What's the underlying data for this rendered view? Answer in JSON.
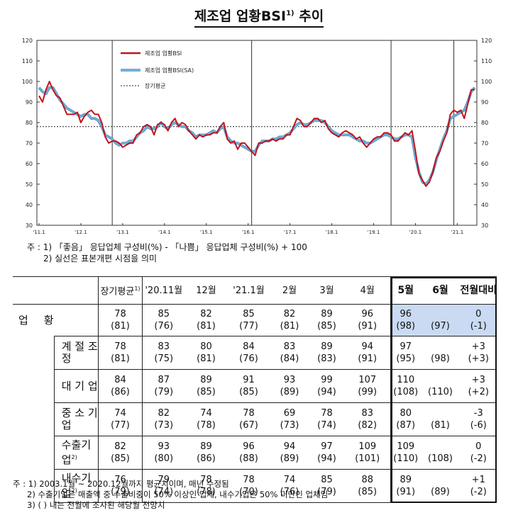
{
  "title": "제조업 업황BSI",
  "title_sup": "1)",
  "chart_data": {
    "type": "line",
    "x_tick_labels": [
      "'11.1",
      "'12.1",
      "'13.1",
      "'14.1",
      "'15.1",
      "'16.1",
      "'17.1",
      "'18.1",
      "'19.1",
      "'20.1",
      "'21.1"
    ],
    "ylim": [
      30,
      120
    ],
    "yticks": [
      30,
      40,
      50,
      60,
      70,
      80,
      90,
      100,
      110,
      120
    ],
    "long_term_average": 78,
    "recession_markers": [
      "2012.10",
      "2016.02",
      "2019.06",
      "2020.12"
    ],
    "legend": [
      "제조업 업황BSI",
      "제조업 업황BSI(SA)",
      "장기평균"
    ],
    "legend_position": "top-left",
    "series": [
      {
        "name": "제조업 업황BSI",
        "color": "#c0141c",
        "values": [
          93,
          90,
          96,
          100,
          96,
          93,
          92,
          88,
          84,
          84,
          84,
          85,
          80,
          83,
          85,
          86,
          84,
          84,
          80,
          73,
          70,
          71,
          71,
          70,
          68,
          69,
          70,
          70,
          74,
          75,
          78,
          79,
          78,
          74,
          79,
          80,
          79,
          76,
          80,
          82,
          78,
          80,
          79,
          76,
          74,
          72,
          74,
          73,
          74,
          74,
          75,
          75,
          78,
          80,
          72,
          70,
          71,
          67,
          70,
          70,
          68,
          66,
          64,
          70,
          70,
          71,
          71,
          72,
          71,
          72,
          72,
          74,
          74,
          78,
          82,
          81,
          78,
          78,
          80,
          82,
          82,
          80,
          81,
          77,
          75,
          74,
          73,
          75,
          76,
          75,
          74,
          72,
          73,
          70,
          68,
          70,
          72,
          73,
          73,
          75,
          75,
          74,
          71,
          71,
          73,
          75,
          74,
          76,
          66,
          55,
          52,
          49,
          51,
          56,
          63,
          66,
          71,
          75,
          84,
          86,
          85,
          86,
          82,
          89,
          96,
          96
        ]
      },
      {
        "name": "제조업 업황BSI(SA)",
        "color": "#6fb3e0",
        "values": [
          97,
          95,
          94,
          97,
          97,
          94,
          91,
          89,
          87,
          86,
          85,
          84,
          83,
          84,
          84,
          82,
          82,
          81,
          78,
          74,
          73,
          72,
          70,
          69,
          70,
          70,
          71,
          71,
          73,
          75,
          76,
          78,
          77,
          77,
          78,
          80,
          78,
          77,
          79,
          80,
          79,
          78,
          78,
          76,
          75,
          73,
          74,
          74,
          74,
          75,
          76,
          75,
          77,
          78,
          73,
          71,
          70,
          70,
          69,
          68,
          67,
          66,
          66,
          69,
          71,
          71,
          71,
          72,
          72,
          73,
          73,
          74,
          75,
          77,
          79,
          80,
          79,
          79,
          80,
          81,
          81,
          81,
          80,
          78,
          76,
          75,
          74,
          74,
          74,
          74,
          73,
          72,
          71,
          71,
          70,
          70,
          71,
          72,
          73,
          74,
          74,
          73,
          72,
          72,
          73,
          74,
          74,
          73,
          63,
          56,
          51,
          50,
          52,
          56,
          62,
          67,
          72,
          76,
          82,
          83,
          84,
          85,
          86,
          90,
          95,
          97
        ]
      },
      {
        "name": "장기평균",
        "color": "#222222",
        "style": "dotted",
        "value": 78
      }
    ]
  },
  "chart_notes": [
    "주 : 1) 「좋음」 응답업체 구성비(%) - 「나쁨」 응답업체 구성비(%) + 100",
    "2) 실선은 표본개편 시점을 의미"
  ],
  "table": {
    "headers": [
      "장기평균",
      "'20.11월",
      "12월",
      "'21.1월",
      "2월",
      "3월",
      "4월",
      "5월",
      "6월",
      "전월대비"
    ],
    "header_sup": "1)",
    "rows": [
      {
        "label": "업    황",
        "sup": "",
        "sub": false,
        "cells": [
          [
            "78",
            "(81)"
          ],
          [
            "85",
            "(76)"
          ],
          [
            "82",
            "(81)"
          ],
          [
            "85",
            "(77)"
          ],
          [
            "82",
            "(81)"
          ],
          [
            "89",
            "(85)"
          ],
          [
            "96",
            "(91)"
          ],
          [
            "96",
            "(98)"
          ],
          [
            "",
            "(97)"
          ],
          [
            "0",
            "(-1)"
          ]
        ]
      },
      {
        "label": "계 절 조 정",
        "sup": "",
        "sub": true,
        "cells": [
          [
            "78",
            "(81)"
          ],
          [
            "83",
            "(75)"
          ],
          [
            "80",
            "(81)"
          ],
          [
            "84",
            "(76)"
          ],
          [
            "83",
            "(84)"
          ],
          [
            "89",
            "(83)"
          ],
          [
            "94",
            "(91)"
          ],
          [
            "97",
            "(95)"
          ],
          [
            "",
            "(98)"
          ],
          [
            "+3",
            "(+3)"
          ]
        ]
      },
      {
        "label": "대  기  업",
        "sup": "",
        "sub": true,
        "cells": [
          [
            "84",
            "(86)"
          ],
          [
            "87",
            "(79)"
          ],
          [
            "89",
            "(85)"
          ],
          [
            "91",
            "(85)"
          ],
          [
            "93",
            "(89)"
          ],
          [
            "99",
            "(94)"
          ],
          [
            "107",
            "(99)"
          ],
          [
            "110",
            "(108)"
          ],
          [
            "",
            "(110)"
          ],
          [
            "+3",
            "(+2)"
          ]
        ]
      },
      {
        "label": "중 소 기 업",
        "sup": "",
        "sub": true,
        "cells": [
          [
            "74",
            "(77)"
          ],
          [
            "82",
            "(73)"
          ],
          [
            "74",
            "(78)"
          ],
          [
            "78",
            "(67)"
          ],
          [
            "69",
            "(73)"
          ],
          [
            "78",
            "(74)"
          ],
          [
            "83",
            "(82)"
          ],
          [
            "80",
            "(87)"
          ],
          [
            "",
            "(81)"
          ],
          [
            "-3",
            "(-6)"
          ]
        ]
      },
      {
        "label": "수출기업",
        "sup": "2)",
        "sub": true,
        "cells": [
          [
            "82",
            "(85)"
          ],
          [
            "93",
            "(80)"
          ],
          [
            "89",
            "(86)"
          ],
          [
            "96",
            "(88)"
          ],
          [
            "94",
            "(89)"
          ],
          [
            "97",
            "(94)"
          ],
          [
            "109",
            "(101)"
          ],
          [
            "109",
            "(110)"
          ],
          [
            "",
            "(108)"
          ],
          [
            "0",
            "(-2)"
          ]
        ]
      },
      {
        "label": "내수기업",
        "sup": "2)",
        "sub": true,
        "cells": [
          [
            "76",
            "(79)"
          ],
          [
            "79",
            "(74)"
          ],
          [
            "78",
            "(78)"
          ],
          [
            "78",
            "(70)"
          ],
          [
            "74",
            "(76)"
          ],
          [
            "85",
            "(79)"
          ],
          [
            "88",
            "(85)"
          ],
          [
            "89",
            "(91)"
          ],
          [
            "",
            "(89)"
          ],
          [
            "+1",
            "(-2)"
          ]
        ]
      }
    ]
  },
  "table_notes": [
    "주 : 1) 2003.1월 ~ 2020.12월까지 평균치이며, 매년 수정됨",
    "2) 수출기업은 매출액 중 수출비중이 50% 이상인 업체, 내수기업은 50% 미만인 업체임",
    "3) (  ) 내는 전월에 조사된 해당월 전망치"
  ]
}
